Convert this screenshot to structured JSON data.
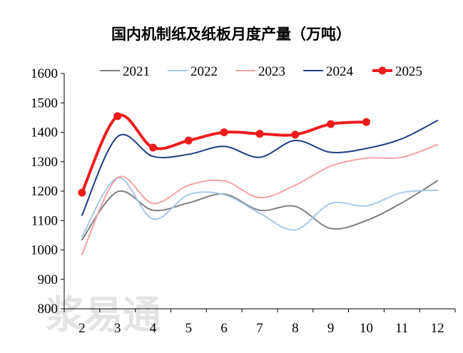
{
  "chart_data": {
    "type": "line",
    "title": "国内机制纸及纸板月度产量（万吨）",
    "xlabel": "",
    "ylabel": "",
    "categories": [
      "2",
      "3",
      "4",
      "5",
      "6",
      "7",
      "8",
      "9",
      "10",
      "11",
      "12"
    ],
    "ylim": [
      800,
      1600
    ],
    "yticks": [
      "800",
      "900",
      "1000",
      "1100",
      "1200",
      "1300",
      "1400",
      "1500",
      "1600"
    ],
    "grid": false,
    "legend_position": "top",
    "series": [
      {
        "name": "2021",
        "color": "#808080",
        "width": 2,
        "markers": false,
        "values": [
          1035,
          1198,
          1135,
          1160,
          1190,
          1135,
          1148,
          1073,
          1100,
          1160,
          1235
        ]
      },
      {
        "name": "2022",
        "color": "#a9c8ea",
        "width": 2,
        "markers": false,
        "values": [
          1045,
          1245,
          1105,
          1188,
          1188,
          1125,
          1068,
          1158,
          1150,
          1195,
          1203
        ]
      },
      {
        "name": "2023",
        "color": "#f4a2a2",
        "width": 2,
        "markers": false,
        "values": [
          985,
          1245,
          1158,
          1220,
          1235,
          1178,
          1220,
          1285,
          1312,
          1315,
          1358
        ]
      },
      {
        "name": "2024",
        "color": "#1f3f82",
        "width": 2,
        "markers": false,
        "values": [
          1118,
          1385,
          1318,
          1325,
          1352,
          1315,
          1372,
          1332,
          1345,
          1378,
          1440
        ]
      },
      {
        "name": "2025",
        "color": "#ee1c1c",
        "width": 4,
        "markers": true,
        "values": [
          1195,
          1455,
          1348,
          1372,
          1400,
          1395,
          1392,
          1428,
          1435,
          null,
          null
        ]
      }
    ]
  },
  "watermark": "浆易通"
}
